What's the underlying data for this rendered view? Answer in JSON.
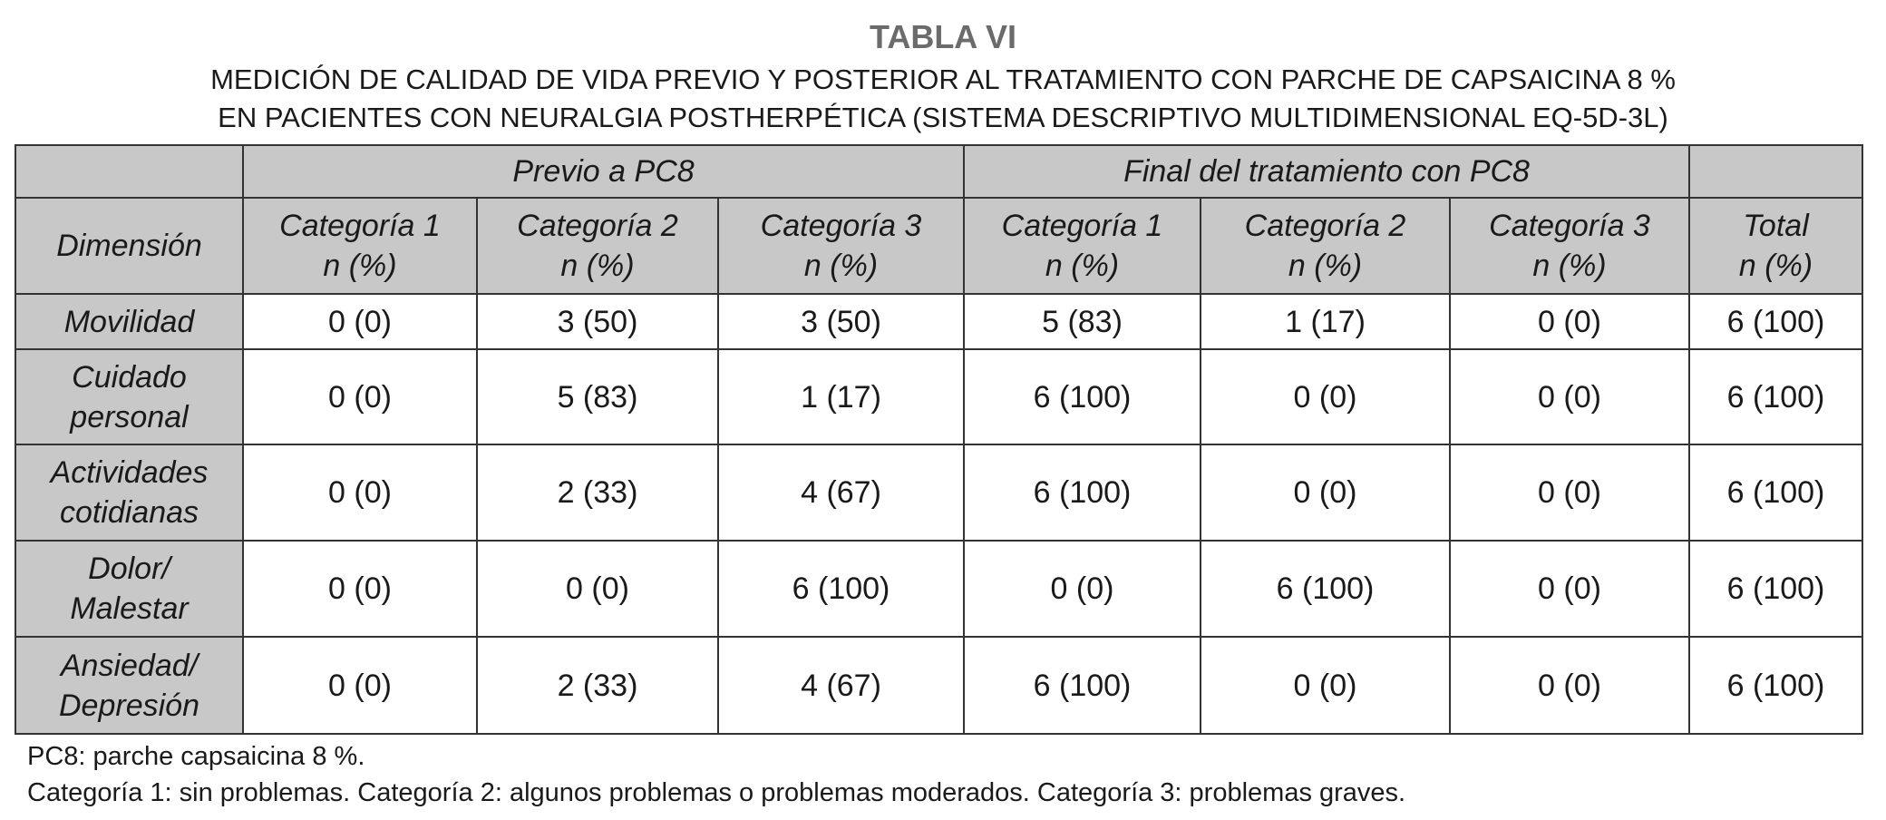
{
  "title": "TABLA VI",
  "subtitle": [
    "MEDICIÓN DE CALIDAD DE VIDA PREVIO Y POSTERIOR AL TRATAMIENTO CON PARCHE DE CAPSAICINA 8 %",
    "EN PACIENTES CON NEURALGIA POSTHERPÉTICA (SISTEMA DESCRIPTIVO MULTIDIMENSIONAL EQ-5D-3L)"
  ],
  "groups": [
    "Previo a PC8",
    "Final del tratamiento con PC8"
  ],
  "columns": [
    {
      "l1": "Dimensión",
      "l2": ""
    },
    {
      "l1": "Categoría 1",
      "l2": "n (%)"
    },
    {
      "l1": "Categoría 2",
      "l2": "n (%)"
    },
    {
      "l1": "Categoría 3",
      "l2": "n (%)"
    },
    {
      "l1": "Categoría 1",
      "l2": "n (%)"
    },
    {
      "l1": "Categoría 2",
      "l2": "n (%)"
    },
    {
      "l1": "Categoría 3",
      "l2": "n (%)"
    },
    {
      "l1": "Total",
      "l2": "n (%)"
    }
  ],
  "rows": [
    {
      "dim": [
        "Movilidad",
        ""
      ],
      "values": [
        "0 (0)",
        "3 (50)",
        "3 (50)",
        "5 (83)",
        "1 (17)",
        "0 (0)",
        "6 (100)"
      ]
    },
    {
      "dim": [
        "Cuidado",
        "personal"
      ],
      "values": [
        "0 (0)",
        "5 (83)",
        "1 (17)",
        "6 (100)",
        "0 (0)",
        "0 (0)",
        "6 (100)"
      ]
    },
    {
      "dim": [
        "Actividades",
        "cotidianas"
      ],
      "values": [
        "0 (0)",
        "2 (33)",
        "4 (67)",
        "6 (100)",
        "0 (0)",
        "0 (0)",
        "6 (100)"
      ]
    },
    {
      "dim": [
        "Dolor/",
        "Malestar"
      ],
      "values": [
        "0 (0)",
        "0 (0)",
        "6 (100)",
        "0 (0)",
        "6 (100)",
        "0 (0)",
        "6 (100)"
      ]
    },
    {
      "dim": [
        "Ansiedad/",
        "Depresión"
      ],
      "values": [
        "0 (0)",
        "2 (33)",
        "4 (67)",
        "6 (100)",
        "0 (0)",
        "0 (0)",
        "6 (100)"
      ]
    }
  ],
  "footnotes": [
    "PC8: parche capsaicina 8 %.",
    "Categoría 1: sin problemas. Categoría 2:  algunos problemas o problemas moderados. Categoría 3: problemas graves."
  ],
  "colors": {
    "header_bg": "#c8c8c8",
    "title": "#6b6b6b",
    "border": "#333333"
  }
}
